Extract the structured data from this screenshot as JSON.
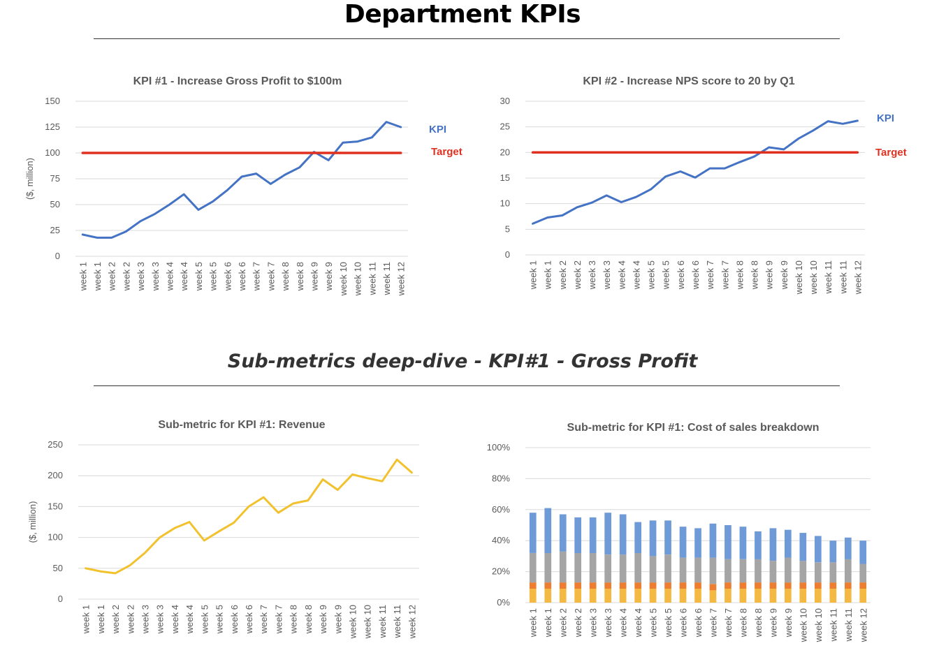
{
  "page": {
    "title": "Department KPIs",
    "section_title": "Sub-metrics deep-dive - KPI#1 - Gross Profit"
  },
  "colors": {
    "kpi": "#4472C4",
    "target": "#E03020",
    "revenue": "#F2C12E",
    "stack_bottom": "#F4B942",
    "stack_second": "#ED7D31",
    "stack_third": "#A5A5A5",
    "stack_top": "#6E9BD8"
  },
  "chart_data": [
    {
      "id": "kpi1",
      "type": "line",
      "title": "KPI #1 - Increase Gross Profit to $100m",
      "ylabel": "($, million)",
      "ylim": [
        0,
        150
      ],
      "yticks": [
        "0",
        "25",
        "50",
        "75",
        "100",
        "125",
        "150"
      ],
      "grid": true,
      "categories": [
        "week 1",
        "week 1",
        "week 2",
        "week 2",
        "week 3",
        "week 3",
        "week 4",
        "week 4",
        "week 5",
        "week 5",
        "week 6",
        "week 6",
        "week 7",
        "week 7",
        "week 8",
        "week 8",
        "week 9",
        "week 9",
        "week 10",
        "week 10",
        "week 11",
        "week 11",
        "week 12"
      ],
      "series": [
        {
          "name": "KPI",
          "color": "#4472C4",
          "values": [
            21,
            18,
            18,
            24,
            34,
            41,
            50,
            60,
            45,
            53,
            64,
            77,
            80,
            70,
            79,
            86,
            101,
            93,
            110,
            111,
            115,
            130,
            125
          ]
        },
        {
          "name": "Target",
          "color": "#E03020",
          "values": [
            100,
            100,
            100,
            100,
            100,
            100,
            100,
            100,
            100,
            100,
            100,
            100,
            100,
            100,
            100,
            100,
            100,
            100,
            100,
            100,
            100,
            100,
            100
          ]
        }
      ]
    },
    {
      "id": "kpi2",
      "type": "line",
      "title": "KPI #2 - Increase NPS score to 20 by Q1",
      "ylabel": "",
      "ylim": [
        0,
        30
      ],
      "yticks": [
        "0",
        "5",
        "10",
        "15",
        "20",
        "25",
        "30"
      ],
      "grid": true,
      "categories": [
        "week 1",
        "week 1",
        "week 2",
        "week 2",
        "week 3",
        "week 3",
        "week 4",
        "week 4",
        "week 5",
        "week 5",
        "week 6",
        "week 6",
        "week 7",
        "week 7",
        "week 8",
        "week 8",
        "week 9",
        "week 9",
        "week 10",
        "week 10",
        "week 11",
        "week 11",
        "week 12"
      ],
      "series": [
        {
          "name": "KPI",
          "color": "#4472C4",
          "values": [
            6.1,
            7.3,
            7.7,
            9.3,
            10.2,
            11.6,
            10.3,
            11.3,
            12.8,
            15.3,
            16.3,
            15.1,
            16.9,
            16.9,
            18.1,
            19.2,
            21.0,
            20.6,
            22.7,
            24.3,
            26.1,
            25.6,
            26.2
          ]
        },
        {
          "name": "Target",
          "color": "#E03020",
          "values": [
            20,
            20,
            20,
            20,
            20,
            20,
            20,
            20,
            20,
            20,
            20,
            20,
            20,
            20,
            20,
            20,
            20,
            20,
            20,
            20,
            20,
            20,
            20
          ]
        }
      ]
    },
    {
      "id": "revenue",
      "type": "line",
      "title": "Sub-metric for KPI #1: Revenue",
      "ylabel": "($, million)",
      "ylim": [
        0,
        250
      ],
      "yticks": [
        "0",
        "50",
        "100",
        "150",
        "200",
        "250"
      ],
      "grid": true,
      "categories": [
        "week 1",
        "week 1",
        "week 2",
        "week 2",
        "week 3",
        "week 3",
        "week 4",
        "week 4",
        "week 5",
        "week 5",
        "week 6",
        "week 6",
        "week 7",
        "week 7",
        "week 8",
        "week 8",
        "week 9",
        "week 9",
        "week 10",
        "week 10",
        "week 11",
        "week 11",
        "week 12"
      ],
      "series": [
        {
          "name": "Revenue",
          "color": "#F2C12E",
          "values": [
            50,
            45,
            42,
            55,
            75,
            100,
            115,
            125,
            95,
            110,
            124,
            150,
            165,
            140,
            155,
            160,
            194,
            177,
            202,
            196,
            191,
            226,
            205
          ]
        }
      ]
    },
    {
      "id": "cos",
      "type": "bar",
      "stacked": true,
      "title": "Sub-metric for KPI #1: Cost of sales breakdown",
      "ylim": [
        0,
        1
      ],
      "yticks": [
        "0%",
        "20%",
        "40%",
        "60%",
        "80%",
        "100%"
      ],
      "grid": true,
      "categories": [
        "week 1",
        "week 1",
        "week 2",
        "week 2",
        "week 3",
        "week 3",
        "week 4",
        "week 4",
        "week 5",
        "week 5",
        "week 6",
        "week 6",
        "week 7",
        "week 7",
        "week 8",
        "week 8",
        "week 9",
        "week 9",
        "week 10",
        "week 10",
        "week 11",
        "week 11",
        "week 12"
      ],
      "series": [
        {
          "color": "#F4B942",
          "values": [
            0.09,
            0.09,
            0.09,
            0.09,
            0.09,
            0.09,
            0.09,
            0.09,
            0.09,
            0.09,
            0.09,
            0.09,
            0.08,
            0.09,
            0.09,
            0.09,
            0.09,
            0.09,
            0.09,
            0.09,
            0.09,
            0.09,
            0.09
          ]
        },
        {
          "color": "#ED7D31",
          "values": [
            0.04,
            0.04,
            0.04,
            0.04,
            0.04,
            0.04,
            0.04,
            0.04,
            0.04,
            0.04,
            0.04,
            0.04,
            0.04,
            0.04,
            0.04,
            0.04,
            0.04,
            0.04,
            0.04,
            0.04,
            0.04,
            0.04,
            0.04
          ]
        },
        {
          "color": "#A5A5A5",
          "values": [
            0.19,
            0.19,
            0.2,
            0.19,
            0.19,
            0.18,
            0.18,
            0.19,
            0.17,
            0.18,
            0.16,
            0.16,
            0.17,
            0.15,
            0.15,
            0.15,
            0.14,
            0.16,
            0.14,
            0.13,
            0.13,
            0.15,
            0.12
          ]
        },
        {
          "color": "#6E9BD8",
          "values": [
            0.26,
            0.29,
            0.24,
            0.23,
            0.23,
            0.27,
            0.26,
            0.2,
            0.23,
            0.22,
            0.2,
            0.19,
            0.22,
            0.22,
            0.21,
            0.18,
            0.21,
            0.18,
            0.18,
            0.17,
            0.14,
            0.14,
            0.15
          ]
        }
      ]
    }
  ]
}
